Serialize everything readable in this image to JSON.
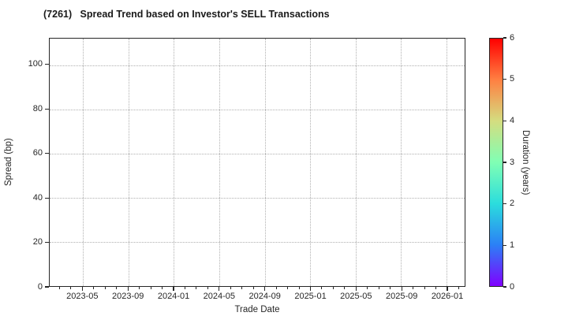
{
  "title": "(7261)   Spread Trend based on Investor's SELL Transactions",
  "chart_data": {
    "type": "scatter",
    "title": "(7261)   Spread Trend based on Investor's SELL Transactions",
    "xlabel": "Trade Date",
    "ylabel": "Spread (bp)",
    "points": [],
    "grid": "dotted",
    "x_axis": {
      "tick_labels": [
        "2023-05",
        "2023-09",
        "2024-01",
        "2024-05",
        "2024-09",
        "2025-01",
        "2025-05",
        "2025-09",
        "2026-01"
      ],
      "first_major_offset_months": 2.93,
      "major_step_months": 4,
      "minor_step_months": 1,
      "total_months": 36.52
    },
    "y_axis": {
      "ticks": [
        0,
        20,
        40,
        60,
        80,
        100
      ],
      "ylim": [
        0,
        112
      ]
    },
    "colorbar": {
      "label": "Duration (years)",
      "ticks": [
        0,
        1,
        2,
        3,
        4,
        5,
        6
      ],
      "min": 0,
      "max": 6,
      "colormap": "rainbow",
      "stops": [
        {
          "pos": 0.0,
          "color": "#8000ff"
        },
        {
          "pos": 0.1667,
          "color": "#2b80f6"
        },
        {
          "pos": 0.3333,
          "color": "#2bdddd"
        },
        {
          "pos": 0.5,
          "color": "#80ffb4"
        },
        {
          "pos": 0.6667,
          "color": "#d4dd80"
        },
        {
          "pos": 0.8333,
          "color": "#ff8042"
        },
        {
          "pos": 1.0,
          "color": "#ff0000"
        }
      ]
    }
  },
  "colors": {
    "background": "#ffffff",
    "spine": "#262626",
    "gridline": "#b0b0b0",
    "text": "#1a1a1a"
  }
}
